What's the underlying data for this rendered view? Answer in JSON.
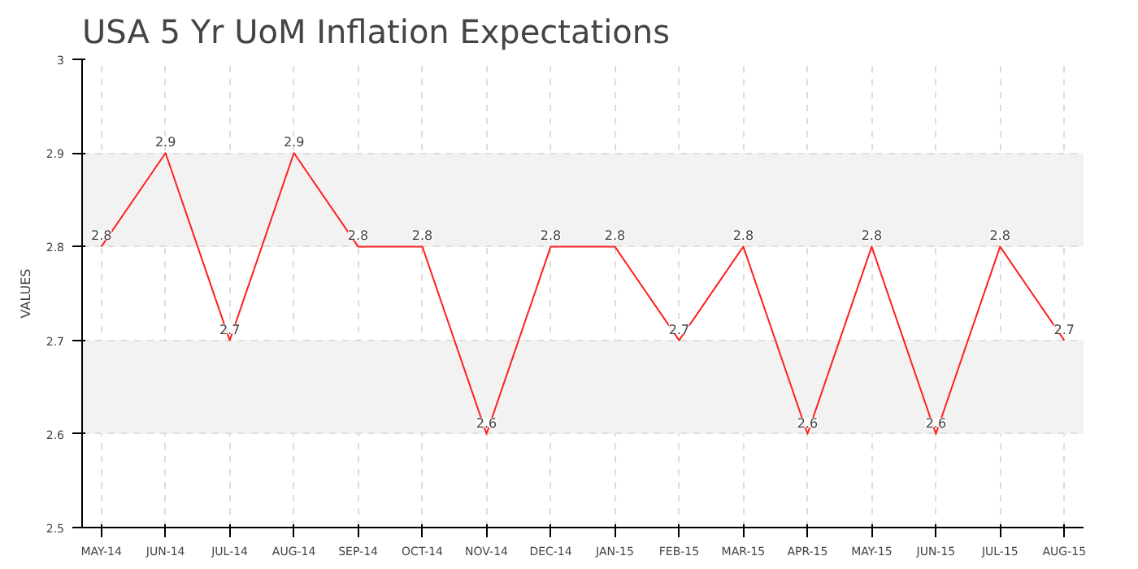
{
  "chart_data": {
    "type": "line",
    "title": "USA 5 Yr UoM Inflation Expectations",
    "ylabel": "VALUES",
    "categories": [
      "MAY-14",
      "JUN-14",
      "JUL-14",
      "AUG-14",
      "SEP-14",
      "OCT-14",
      "NOV-14",
      "DEC-14",
      "JAN-15",
      "FEB-15",
      "MAR-15",
      "APR-15",
      "MAY-15",
      "JUN-15",
      "JUL-15",
      "AUG-15"
    ],
    "series": [
      {
        "color": "#ff2020",
        "values": [
          2.8,
          2.9,
          2.7,
          2.9,
          2.8,
          2.8,
          2.6,
          2.8,
          2.8,
          2.7,
          2.8,
          2.6,
          2.8,
          2.6,
          2.8,
          2.7
        ]
      }
    ],
    "ylim": [
      2.5,
      3
    ],
    "yticks": [
      2.5,
      2.6,
      2.7,
      2.8,
      2.9,
      3
    ],
    "grid": true,
    "data_labels": true,
    "marker": "none",
    "line_style": "solid"
  }
}
